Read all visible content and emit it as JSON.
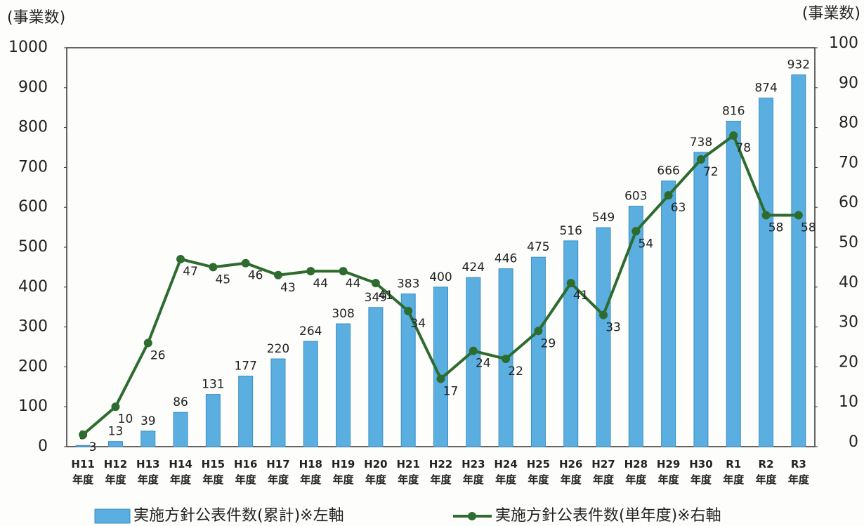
{
  "chart_data": {
    "type": "bar_line",
    "y_axis_label": "(事業数)",
    "y2_axis_label": "(事業数)",
    "categories": [
      "H11年度",
      "H12年度",
      "H13年度",
      "H14年度",
      "H15年度",
      "H16年度",
      "H17年度",
      "H18年度",
      "H19年度",
      "H20年度",
      "H21年度",
      "H22年度",
      "H23年度",
      "H24年度",
      "H25年度",
      "H26年度",
      "H27年度",
      "H28年度",
      "H29年度",
      "H30年度",
      "R1年度",
      "R2年度",
      "R3年度"
    ],
    "series": [
      {
        "name": "実施方針公表件数(累計)※左軸",
        "type": "bar",
        "color": "#5aaee0",
        "axis": "y",
        "values": [
          3,
          13,
          39,
          86,
          131,
          177,
          220,
          264,
          308,
          349,
          383,
          400,
          424,
          446,
          475,
          516,
          549,
          603,
          666,
          738,
          816,
          874,
          932
        ]
      },
      {
        "name": "実施方針公表件数(単年度)※右軸",
        "type": "line",
        "color": "#2e6b2e",
        "axis": "y2",
        "values": [
          3,
          10,
          26,
          47,
          45,
          46,
          43,
          44,
          44,
          41,
          34,
          17,
          24,
          22,
          29,
          41,
          33,
          54,
          63,
          72,
          78,
          58,
          58
        ]
      }
    ],
    "ylim": [
      0,
      1000
    ],
    "yticks": [
      0,
      100,
      200,
      300,
      400,
      500,
      600,
      700,
      800,
      900,
      1000
    ],
    "y2lim": [
      0,
      100
    ],
    "y2ticks": [
      0,
      10,
      20,
      30,
      40,
      50,
      60,
      70,
      80,
      90,
      100
    ]
  }
}
